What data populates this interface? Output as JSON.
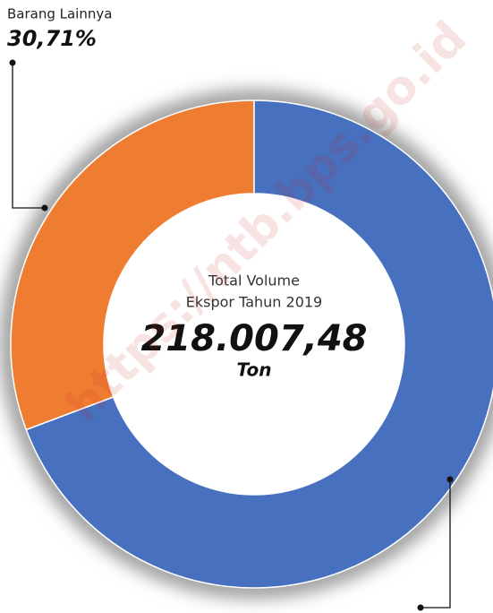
{
  "chart_data": {
    "type": "pie",
    "donut": true,
    "categories": [
      "Barang Lainnya",
      null
    ],
    "values": [
      30.71,
      69.29
    ],
    "value_labels": [
      "30,71%",
      null
    ],
    "colors": [
      "#ef7d31",
      "#4770bf"
    ],
    "center_title": [
      "Total Volume",
      "Ekspor Tahun 2019"
    ],
    "center_value": "218.007,48",
    "center_unit": "Ton",
    "watermark": "https://ntb.bps.go.id"
  }
}
